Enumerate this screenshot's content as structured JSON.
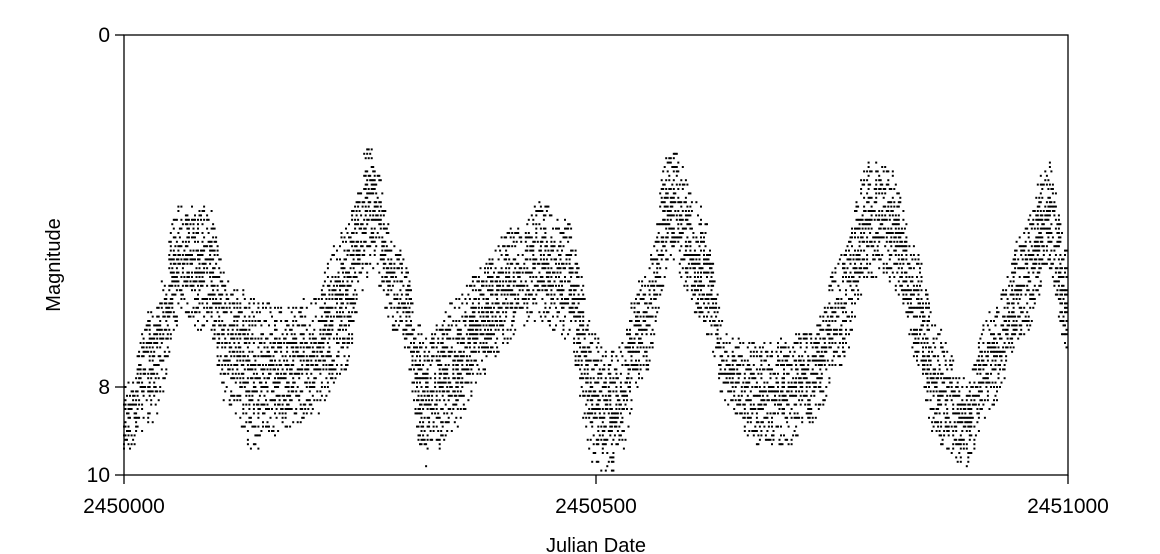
{
  "chart_data": {
    "type": "scatter",
    "title": "",
    "xlabel": "Julian Date",
    "ylabel": "Magnitude",
    "xlim": [
      2450000,
      2451000
    ],
    "ylim": [
      0,
      10
    ],
    "y_inverted": true,
    "x_ticks": [
      "2450000",
      "2450500",
      "2451000"
    ],
    "y_ticks": [
      "0",
      "8",
      "10"
    ],
    "y_tick_values": [
      0,
      8,
      10
    ],
    "x_tick_values": [
      2450000,
      2450500,
      2451000
    ],
    "grid": false,
    "marker_color": "#000000",
    "envelope": {
      "jd": [
        2450000,
        2450030,
        2450060,
        2450090,
        2450110,
        2450140,
        2450170,
        2450200,
        2450230,
        2450260,
        2450290,
        2450320,
        2450350,
        2450380,
        2450410,
        2450440,
        2450470,
        2450500,
        2450520,
        2450550,
        2450580,
        2450610,
        2450640,
        2450670,
        2450700,
        2450730,
        2450760,
        2450790,
        2450810,
        2450840,
        2450860,
        2450890,
        2450920,
        2450950,
        2450980,
        2451000
      ],
      "bright": [
        7.8,
        6.2,
        3.8,
        3.9,
        5.5,
        6.0,
        6.2,
        5.9,
        4.5,
        2.5,
        4.8,
        6.8,
        6.0,
        5.2,
        4.3,
        3.8,
        4.2,
        6.8,
        7.2,
        5.4,
        2.5,
        3.8,
        6.8,
        7.0,
        6.8,
        6.6,
        5.0,
        2.8,
        3.0,
        4.8,
        6.5,
        7.8,
        6.2,
        4.5,
        2.8,
        4.8
      ],
      "dim": [
        9.5,
        8.9,
        6.5,
        6.8,
        8.5,
        9.5,
        9.0,
        8.7,
        7.8,
        5.5,
        6.8,
        9.8,
        9.0,
        7.8,
        7.0,
        6.5,
        7.0,
        10.0,
        9.9,
        7.8,
        5.2,
        6.5,
        8.5,
        9.3,
        9.4,
        8.8,
        7.5,
        5.5,
        5.6,
        7.5,
        9.3,
        9.9,
        8.5,
        7.0,
        5.5,
        7.3
      ]
    }
  }
}
